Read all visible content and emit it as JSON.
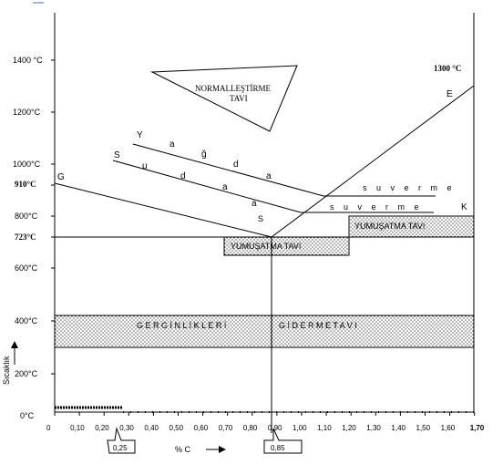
{
  "diagram": {
    "y_ticks": [
      "1400 °C",
      "1200°C",
      "1000°C",
      "910°C",
      "800°C",
      "723°C",
      "600°C",
      "400°C",
      "200°C",
      "0°C"
    ],
    "x_ticks": [
      "0",
      "0,10",
      "0,20",
      "0,30",
      "0,40",
      "0,50",
      "0,60",
      "0,70",
      "0,80",
      "0,90",
      "1,00",
      "1,10",
      "1,20",
      "1,30",
      "1,40",
      "1,50",
      "1,60",
      "1,70"
    ],
    "y_axis_label": "Sıcaklık",
    "x_axis_label": "% C",
    "callout_025": "0,25",
    "callout_085": "0,85",
    "temp_1300": "1300 °C",
    "point_E": "E",
    "point_G": "G",
    "point_S": "S",
    "point_K": "K",
    "letters_Y": "Y",
    "letters_a1": "a",
    "letters_g": "ğ",
    "letters_d1": "d",
    "letters_a2": "a",
    "letters_S2": "S",
    "letters_u": "u",
    "letters_d2": "d",
    "letters_a3": "a",
    "letters_a4": "a",
    "su_verme_1": "s u    v e r m e",
    "su_verme_2": "s u    v e r m e",
    "normalizing_line1": "NORMALLEŞTİRME",
    "normalizing_line2": "TAVI",
    "softening_upper": "YUMUŞATMA TAVI",
    "softening_lower": "YUMUŞATMA TAVI",
    "stress_relief_left": "G E R G İ N L İ K L E R İ",
    "stress_relief_right": "G İ D E R M E   T A V I"
  }
}
